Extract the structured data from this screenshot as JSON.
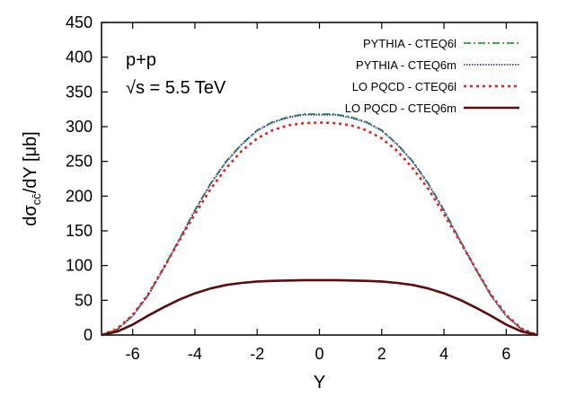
{
  "chart_data": {
    "type": "line",
    "xlabel": "Y",
    "ylabel": {
      "prefix": "dσ",
      "subscript": "cc̄",
      "suffix": "/dY [μb]"
    },
    "xlim": [
      -7,
      7
    ],
    "ylim": [
      0,
      450
    ],
    "xticks": [
      -6,
      -4,
      -2,
      0,
      2,
      4,
      6
    ],
    "yticks": [
      0,
      50,
      100,
      150,
      200,
      250,
      300,
      350,
      400,
      450
    ],
    "grid": false,
    "legend_position": "top-right",
    "annotations": [
      "p+p",
      "√s = 5.5 TeV"
    ],
    "series": [
      {
        "name": "PYTHIA - CTEQ6l",
        "color": "#2e9a2e",
        "style": "dash-dot",
        "x": [
          -7,
          -6.5,
          -6,
          -5.5,
          -5,
          -4.5,
          -4,
          -3.5,
          -3,
          -2.5,
          -2,
          -1.5,
          -1,
          -0.5,
          0,
          0.5,
          1,
          1.5,
          2,
          2.5,
          3,
          3.5,
          4,
          4.5,
          5,
          5.5,
          6,
          6.5,
          7
        ],
        "y": [
          0,
          8,
          28,
          58,
          97,
          138,
          180,
          218,
          250,
          275,
          295,
          307,
          314,
          318,
          318,
          318,
          314,
          307,
          295,
          275,
          250,
          218,
          180,
          138,
          97,
          58,
          28,
          8,
          0
        ]
      },
      {
        "name": "PYTHIA - CTEQ6m",
        "color": "#3b3ba8",
        "style": "dotted",
        "x": [
          -7,
          -6.5,
          -6,
          -5.5,
          -5,
          -4.5,
          -4,
          -3.5,
          -3,
          -2.5,
          -2,
          -1.5,
          -1,
          -0.5,
          0,
          0.5,
          1,
          1.5,
          2,
          2.5,
          3,
          3.5,
          4,
          4.5,
          5,
          5.5,
          6,
          6.5,
          7
        ],
        "y": [
          0,
          8,
          27,
          57,
          96,
          137,
          179,
          217,
          249,
          274,
          294,
          306,
          313,
          317,
          317,
          317,
          313,
          306,
          294,
          274,
          249,
          217,
          179,
          137,
          96,
          57,
          27,
          8,
          0
        ]
      },
      {
        "name": "LO PQCD - CTEQ6l",
        "color": "#e8201a",
        "style": "dotted",
        "x": [
          -7,
          -6.5,
          -6,
          -5.5,
          -5,
          -4.5,
          -4,
          -3.5,
          -3,
          -2.5,
          -2,
          -1.5,
          -1,
          -0.5,
          0,
          0.5,
          1,
          1.5,
          2,
          2.5,
          3,
          3.5,
          4,
          4.5,
          5,
          5.5,
          6,
          6.5,
          7
        ],
        "y": [
          0,
          9,
          29,
          59,
          97,
          136,
          174,
          210,
          240,
          265,
          283,
          295,
          302,
          305,
          306,
          305,
          302,
          295,
          283,
          265,
          240,
          210,
          174,
          136,
          97,
          59,
          29,
          9,
          0
        ]
      },
      {
        "name": "LO PQCD - CTEQ6m",
        "color": "#5c0c0c",
        "style": "solid",
        "x": [
          -7,
          -6.5,
          -6,
          -5.5,
          -5,
          -4.5,
          -4,
          -3.5,
          -3,
          -2.5,
          -2,
          -1.5,
          -1,
          -0.5,
          0,
          0.5,
          1,
          1.5,
          2,
          2.5,
          3,
          3.5,
          4,
          4.5,
          5,
          5.5,
          6,
          6.5,
          7
        ],
        "y": [
          0,
          5,
          15,
          28,
          40,
          51,
          60,
          67,
          72,
          75,
          77,
          78,
          78.5,
          79,
          79,
          79,
          78.5,
          78,
          77,
          75,
          72,
          67,
          60,
          51,
          40,
          28,
          15,
          5,
          0
        ]
      }
    ]
  }
}
